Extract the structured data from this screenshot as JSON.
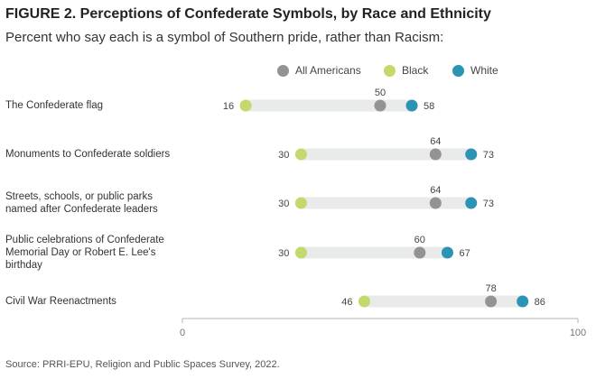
{
  "title": "FIGURE 2. Perceptions of Confederate Symbols, by Race and Ethnicity",
  "subtitle": "Percent who say each is a symbol of Southern pride, rather than Racism:",
  "source": "Source: PRRI-EPU, Religion and Public Spaces Survey, 2022.",
  "colors": {
    "all_americans": "#939393",
    "black": "#c3d96b",
    "white": "#2b93b3",
    "bar": "#e9eaea",
    "axis": "#b5b5b5"
  },
  "chart_data": {
    "type": "dumbbell",
    "title": "FIGURE 2. Perceptions of Confederate Symbols, by Race and Ethnicity",
    "subtitle": "Percent who say each is a symbol of Southern pride, rather than Racism:",
    "xlim": [
      0,
      100
    ],
    "x_ticks": [
      "0",
      "100"
    ],
    "legend_position": "top-right",
    "grid": false,
    "categories": [
      "The Confederate flag",
      "Monuments to Confederate soldiers",
      "Streets, schools, or public parks named after Confederate leaders",
      "Public celebrations of Confederate Memorial Day or Robert E. Lee's birthday",
      "Civil War Reenactments"
    ],
    "category_lines": [
      [
        "The Confederate flag"
      ],
      [
        "Monuments to Confederate soldiers"
      ],
      [
        "Streets, schools, or public parks",
        "named after Confederate leaders"
      ],
      [
        "Public celebrations of Confederate",
        "Memorial Day or Robert E. Lee's",
        "birthday"
      ],
      [
        "Civil War Reenactments"
      ]
    ],
    "series": [
      {
        "name": "All Americans",
        "key": "all_americans",
        "values": [
          50,
          64,
          64,
          60,
          78
        ]
      },
      {
        "name": "Black",
        "key": "black",
        "values": [
          16,
          30,
          30,
          30,
          46
        ]
      },
      {
        "name": "White",
        "key": "white",
        "values": [
          58,
          73,
          73,
          67,
          86
        ]
      }
    ]
  }
}
